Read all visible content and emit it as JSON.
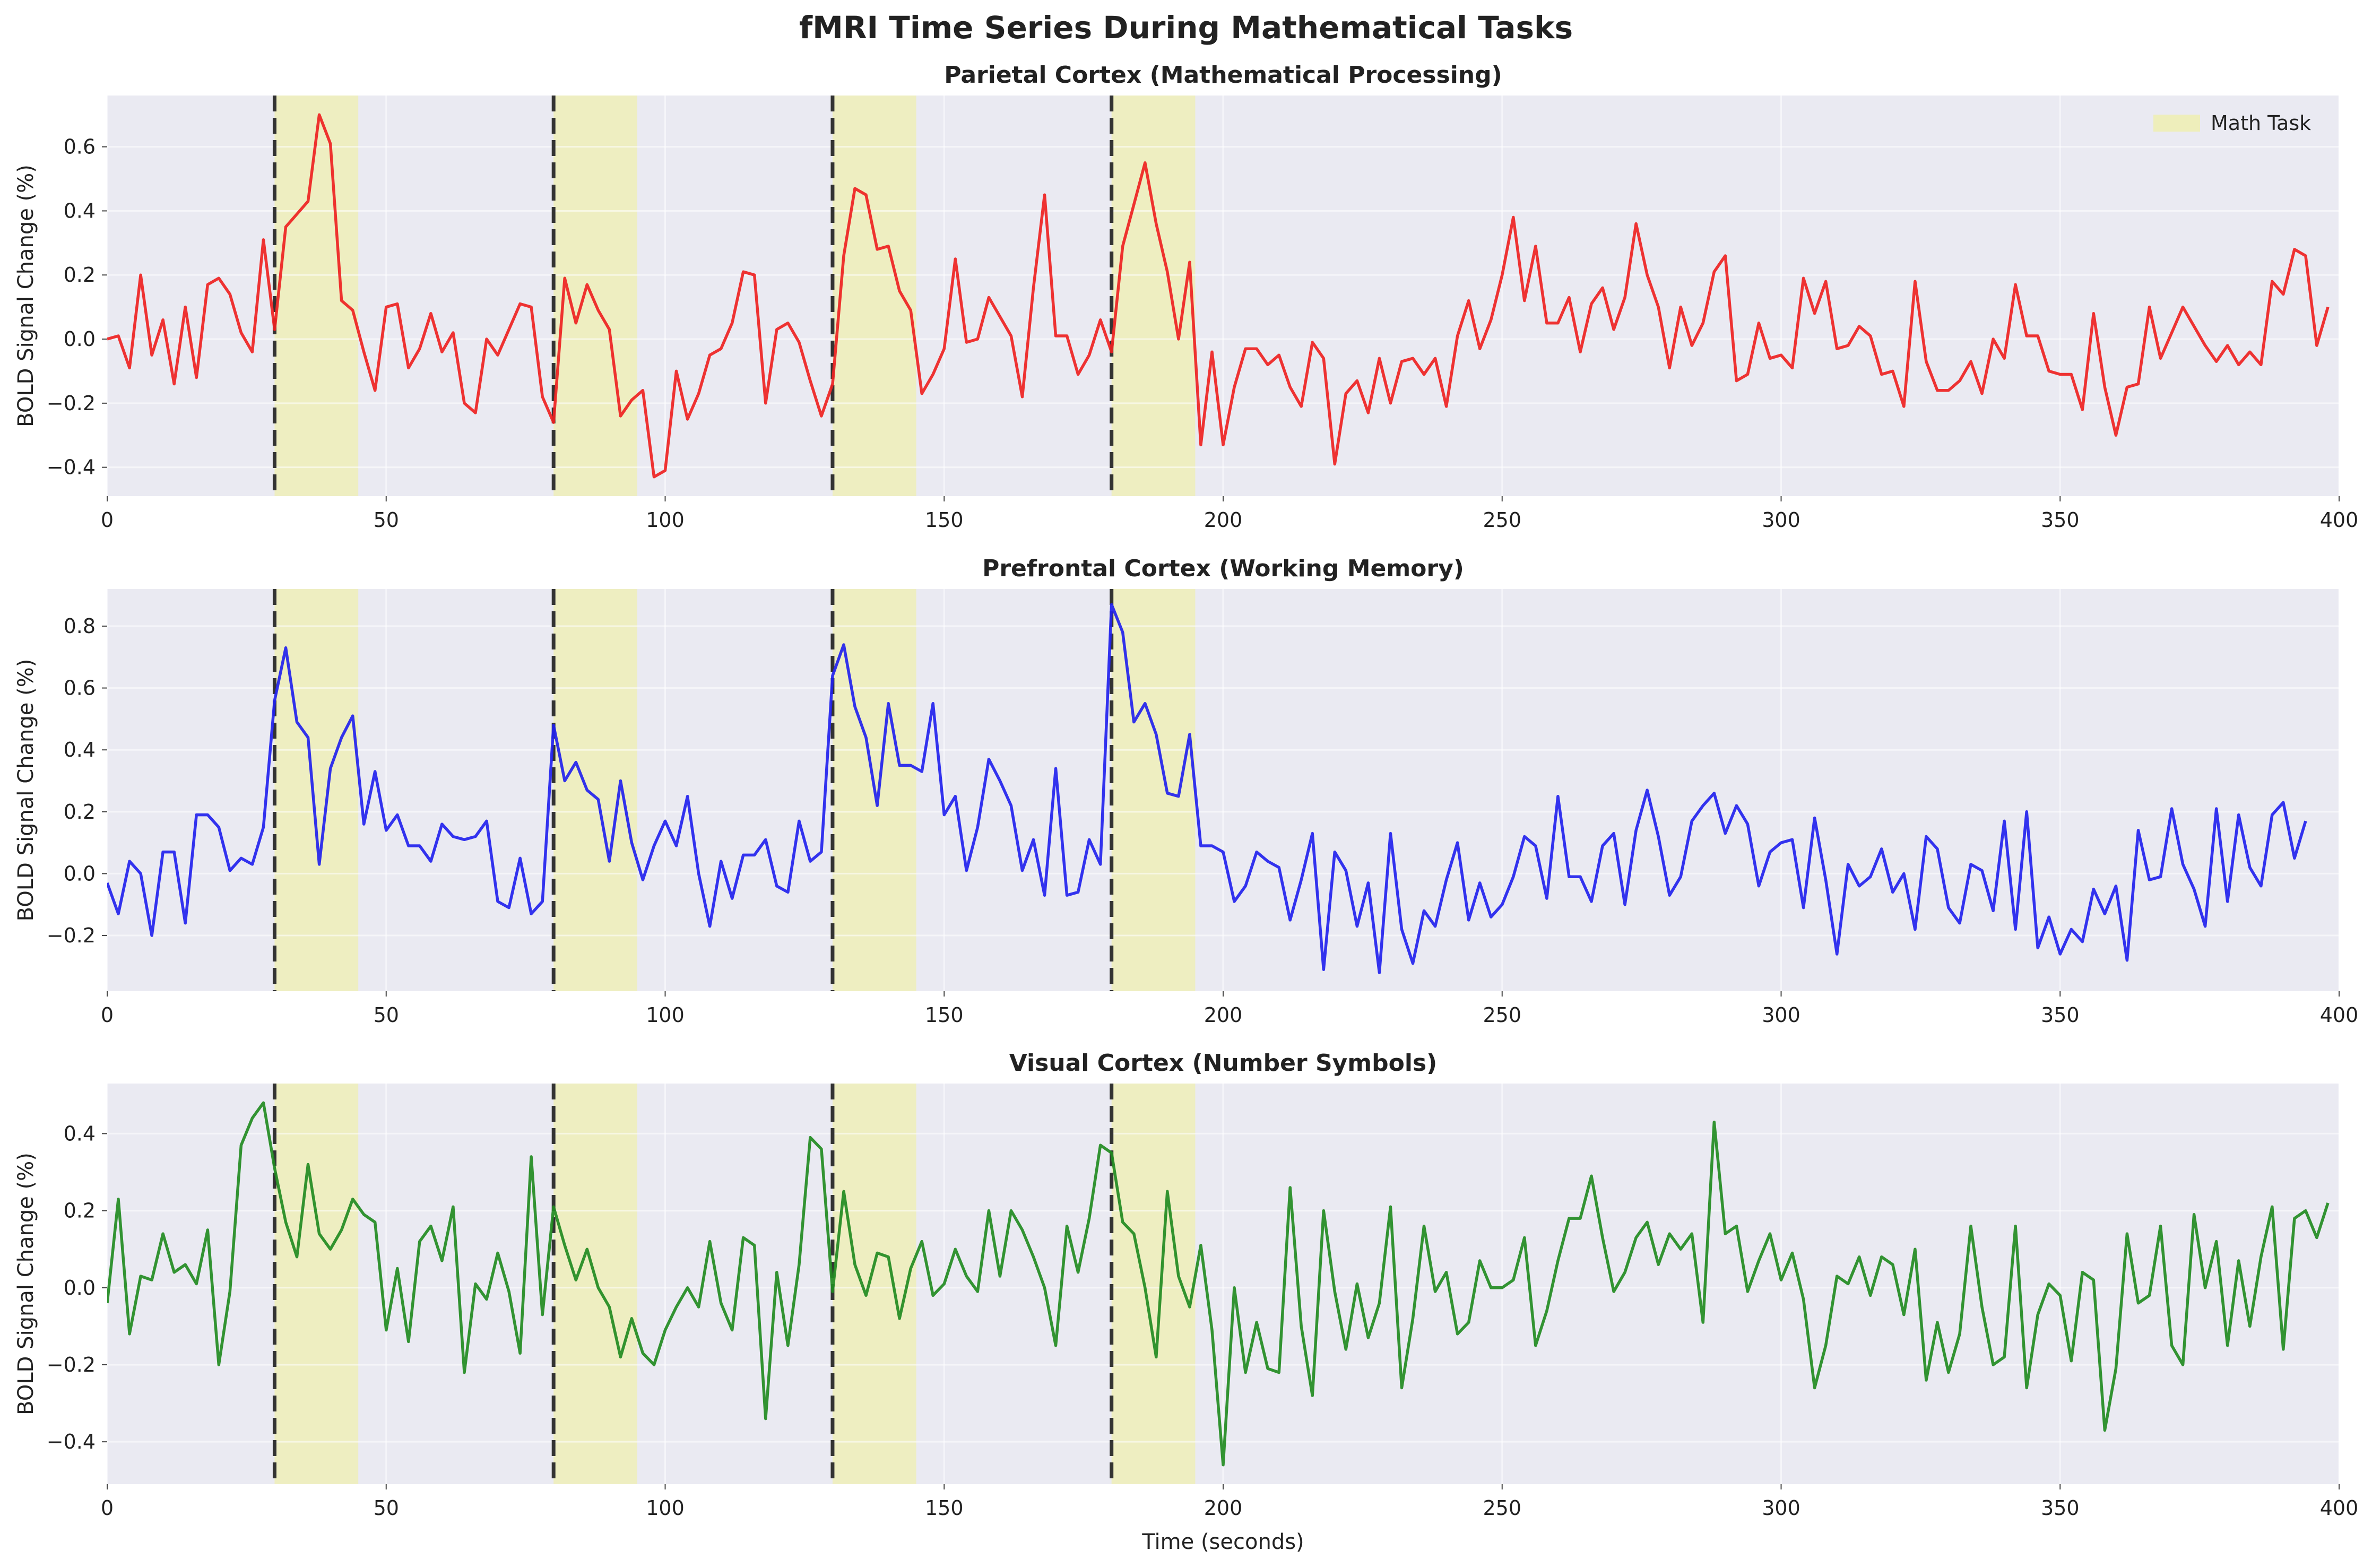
{
  "figure": {
    "suptitle": "fMRI Time Series During Mathematical Tasks",
    "background": "#ffffff",
    "axes_face": "#eaeaf2",
    "grid_color": "#ffffff",
    "task_color": "#eeeebb",
    "onset_line_color": "#333333"
  },
  "chart_data": [
    {
      "type": "line",
      "title": "Parietal Cortex (Mathematical Processing)",
      "xlabel": "",
      "ylabel": "BOLD Signal Change (%)",
      "xlim": [
        0,
        400
      ],
      "ylim": [
        -0.49,
        0.76
      ],
      "xticks": [
        0,
        50,
        100,
        150,
        200,
        250,
        300,
        350,
        400
      ],
      "yticks": [
        -0.4,
        -0.2,
        0.0,
        0.2,
        0.4,
        0.6
      ],
      "ytick_labels": [
        "−0.4",
        "−0.2",
        "0.0",
        "0.2",
        "0.4",
        "0.6"
      ],
      "grid": true,
      "legend": {
        "position": "top-right",
        "entries": [
          {
            "label": "Math Task",
            "color": "#eeeebb"
          }
        ]
      },
      "task_blocks": [
        [
          30,
          45
        ],
        [
          80,
          95
        ],
        [
          130,
          145
        ],
        [
          180,
          195
        ]
      ],
      "onset_lines": [
        30,
        80,
        130,
        180
      ],
      "series": [
        {
          "color": "#ee2222",
          "x_start": 0,
          "x_step": 2,
          "values": [
            0.0,
            0.01,
            -0.09,
            0.2,
            -0.05,
            0.06,
            -0.14,
            0.1,
            -0.12,
            0.17,
            0.19,
            0.14,
            0.02,
            -0.04,
            0.31,
            0.03,
            0.35,
            0.39,
            0.43,
            0.7,
            0.61,
            0.12,
            0.09,
            -0.04,
            -0.16,
            0.1,
            0.11,
            -0.09,
            -0.03,
            0.08,
            -0.04,
            0.02,
            -0.2,
            -0.23,
            0.0,
            -0.05,
            0.03,
            0.11,
            0.1,
            -0.18,
            -0.26,
            0.19,
            0.05,
            0.17,
            0.09,
            0.03,
            -0.24,
            -0.19,
            -0.16,
            -0.43,
            -0.41,
            -0.1,
            -0.25,
            -0.17,
            -0.05,
            -0.03,
            0.05,
            0.21,
            0.2,
            -0.2,
            0.03,
            0.05,
            -0.01,
            -0.13,
            -0.24,
            -0.14,
            0.26,
            0.47,
            0.45,
            0.28,
            0.29,
            0.15,
            0.09,
            -0.17,
            -0.11,
            -0.03,
            0.25,
            -0.01,
            0.0,
            0.13,
            0.07,
            0.01,
            -0.18,
            0.16,
            0.45,
            0.01,
            0.01,
            -0.11,
            -0.05,
            0.06,
            -0.04,
            0.29,
            0.42,
            0.55,
            0.36,
            0.21,
            0.0,
            0.24,
            -0.33,
            -0.04,
            -0.33,
            -0.15,
            -0.03,
            -0.03,
            -0.08,
            -0.05,
            -0.15,
            -0.21,
            -0.01,
            -0.06,
            -0.39,
            -0.17,
            -0.13,
            -0.23,
            -0.06,
            -0.2,
            -0.07,
            -0.06,
            -0.11,
            -0.06,
            -0.21,
            0.01,
            0.12,
            -0.03,
            0.06,
            0.2,
            0.38,
            0.12,
            0.29,
            0.05,
            0.05,
            0.13,
            -0.04,
            0.11,
            0.16,
            0.03,
            0.13,
            0.36,
            0.2,
            0.1,
            -0.09,
            0.1,
            -0.02,
            0.05,
            0.21,
            0.26,
            -0.13,
            -0.11,
            0.05,
            -0.06,
            -0.05,
            -0.09,
            0.19,
            0.08,
            0.18,
            -0.03,
            -0.02,
            0.04,
            0.01,
            -0.11,
            -0.1,
            -0.21,
            0.18,
            -0.07,
            -0.16,
            -0.16,
            -0.13,
            -0.07,
            -0.17,
            0.0,
            -0.06,
            0.17,
            0.01,
            0.01,
            -0.1,
            -0.11,
            -0.11,
            -0.22,
            0.08,
            -0.15,
            -0.3,
            -0.15,
            -0.14,
            0.1,
            -0.06,
            0.02,
            0.1,
            0.04,
            -0.02,
            -0.07,
            -0.02,
            -0.08,
            -0.04,
            -0.08,
            0.18,
            0.14,
            0.28,
            0.26,
            -0.02,
            0.1
          ]
        }
      ]
    },
    {
      "type": "line",
      "title": "Prefrontal Cortex (Working Memory)",
      "xlabel": "",
      "ylabel": "BOLD Signal Change (%)",
      "xlim": [
        0,
        400
      ],
      "ylim": [
        -0.38,
        0.92
      ],
      "xticks": [
        0,
        50,
        100,
        150,
        200,
        250,
        300,
        350,
        400
      ],
      "yticks": [
        -0.2,
        0.0,
        0.2,
        0.4,
        0.6,
        0.8
      ],
      "ytick_labels": [
        "−0.2",
        "0.0",
        "0.2",
        "0.4",
        "0.6",
        "0.8"
      ],
      "grid": true,
      "task_blocks": [
        [
          30,
          45
        ],
        [
          80,
          95
        ],
        [
          130,
          145
        ],
        [
          180,
          195
        ]
      ],
      "onset_lines": [
        30,
        80,
        130,
        180
      ],
      "series": [
        {
          "color": "#2222ee",
          "x_start": 0,
          "x_step": 2,
          "values": [
            -0.03,
            -0.13,
            0.04,
            0.0,
            -0.2,
            0.07,
            0.07,
            -0.16,
            0.19,
            0.19,
            0.15,
            0.01,
            0.05,
            0.03,
            0.15,
            0.56,
            0.73,
            0.49,
            0.44,
            0.03,
            0.34,
            0.44,
            0.51,
            0.16,
            0.33,
            0.14,
            0.19,
            0.09,
            0.09,
            0.04,
            0.16,
            0.12,
            0.11,
            0.12,
            0.17,
            -0.09,
            -0.11,
            0.05,
            -0.13,
            -0.09,
            0.48,
            0.3,
            0.36,
            0.27,
            0.24,
            0.04,
            0.3,
            0.1,
            -0.02,
            0.09,
            0.17,
            0.09,
            0.25,
            0.0,
            -0.17,
            0.04,
            -0.08,
            0.06,
            0.06,
            0.11,
            -0.04,
            -0.06,
            0.17,
            0.04,
            0.07,
            0.64,
            0.74,
            0.54,
            0.44,
            0.22,
            0.55,
            0.35,
            0.35,
            0.33,
            0.55,
            0.19,
            0.25,
            0.01,
            0.15,
            0.37,
            0.3,
            0.22,
            0.01,
            0.11,
            -0.07,
            0.34,
            -0.07,
            -0.06,
            0.11,
            0.03,
            0.87,
            0.78,
            0.49,
            0.55,
            0.45,
            0.26,
            0.25,
            0.45,
            0.09,
            0.09,
            0.07,
            -0.09,
            -0.04,
            0.07,
            0.04,
            0.02,
            -0.15,
            -0.02,
            0.13,
            -0.31,
            0.07,
            0.01,
            -0.17,
            -0.03,
            -0.32,
            0.13,
            -0.18,
            -0.29,
            -0.12,
            -0.17,
            -0.02,
            0.1,
            -0.15,
            -0.03,
            -0.14,
            -0.1,
            -0.01,
            0.12,
            0.09,
            -0.08,
            0.25,
            -0.01,
            -0.01,
            -0.09,
            0.09,
            0.13,
            -0.1,
            0.14,
            0.27,
            0.12,
            -0.07,
            -0.01,
            0.17,
            0.22,
            0.26,
            0.13,
            0.22,
            0.16,
            -0.04,
            0.07,
            0.1,
            0.11,
            -0.11,
            0.18,
            -0.02,
            -0.26,
            0.03,
            -0.04,
            -0.01,
            0.08,
            -0.06,
            0.0,
            -0.18,
            0.12,
            0.08,
            -0.11,
            -0.16,
            0.03,
            0.01,
            -0.12,
            0.17,
            -0.18,
            0.2,
            -0.24,
            -0.14,
            -0.26,
            -0.18,
            -0.22,
            -0.05,
            -0.13,
            -0.04,
            -0.28,
            0.14,
            -0.02,
            -0.01,
            0.21,
            0.03,
            -0.05,
            -0.17,
            0.21,
            -0.09,
            0.19,
            0.02,
            -0.04,
            0.19,
            0.23,
            0.05,
            0.17
          ]
        }
      ]
    },
    {
      "type": "line",
      "title": "Visual Cortex (Number Symbols)",
      "xlabel": "Time (seconds)",
      "ylabel": "BOLD Signal Change (%)",
      "xlim": [
        0,
        400
      ],
      "ylim": [
        -0.51,
        0.53
      ],
      "xticks": [
        0,
        50,
        100,
        150,
        200,
        250,
        300,
        350,
        400
      ],
      "yticks": [
        -0.4,
        -0.2,
        0.0,
        0.2,
        0.4
      ],
      "ytick_labels": [
        "−0.4",
        "−0.2",
        "0.0",
        "0.2",
        "0.4"
      ],
      "grid": true,
      "task_blocks": [
        [
          30,
          45
        ],
        [
          80,
          95
        ],
        [
          130,
          145
        ],
        [
          180,
          195
        ]
      ],
      "onset_lines": [
        30,
        80,
        130,
        180
      ],
      "series": [
        {
          "color": "#228b22",
          "x_start": 0,
          "x_step": 2,
          "values": [
            -0.04,
            0.23,
            -0.12,
            0.03,
            0.02,
            0.14,
            0.04,
            0.06,
            0.01,
            0.15,
            -0.2,
            -0.01,
            0.37,
            0.44,
            0.48,
            0.31,
            0.17,
            0.08,
            0.32,
            0.14,
            0.1,
            0.15,
            0.23,
            0.19,
            0.17,
            -0.11,
            0.05,
            -0.14,
            0.12,
            0.16,
            0.07,
            0.21,
            -0.22,
            0.01,
            -0.03,
            0.09,
            -0.01,
            -0.17,
            0.34,
            -0.07,
            0.21,
            0.11,
            0.02,
            0.1,
            0.0,
            -0.05,
            -0.18,
            -0.08,
            -0.17,
            -0.2,
            -0.11,
            -0.05,
            0.0,
            -0.05,
            0.12,
            -0.04,
            -0.11,
            0.13,
            0.11,
            -0.34,
            0.04,
            -0.15,
            0.06,
            0.39,
            0.36,
            -0.01,
            0.25,
            0.06,
            -0.02,
            0.09,
            0.08,
            -0.08,
            0.05,
            0.12,
            -0.02,
            0.01,
            0.1,
            0.03,
            -0.01,
            0.2,
            0.03,
            0.2,
            0.15,
            0.08,
            0.0,
            -0.15,
            0.16,
            0.04,
            0.18,
            0.37,
            0.35,
            0.17,
            0.14,
            0.0,
            -0.18,
            0.25,
            0.03,
            -0.05,
            0.11,
            -0.11,
            -0.46,
            0.0,
            -0.22,
            -0.09,
            -0.21,
            -0.22,
            0.26,
            -0.1,
            -0.28,
            0.2,
            -0.01,
            -0.16,
            0.01,
            -0.13,
            -0.04,
            0.21,
            -0.26,
            -0.08,
            0.16,
            -0.01,
            0.04,
            -0.12,
            -0.09,
            0.07,
            0.0,
            0.0,
            0.02,
            0.13,
            -0.15,
            -0.06,
            0.07,
            0.18,
            0.18,
            0.29,
            0.13,
            -0.01,
            0.04,
            0.13,
            0.17,
            0.06,
            0.14,
            0.1,
            0.14,
            -0.09,
            0.43,
            0.14,
            0.16,
            -0.01,
            0.07,
            0.14,
            0.02,
            0.09,
            -0.03,
            -0.26,
            -0.15,
            0.03,
            0.01,
            0.08,
            -0.02,
            0.08,
            0.06,
            -0.07,
            0.1,
            -0.24,
            -0.09,
            -0.22,
            -0.12,
            0.16,
            -0.05,
            -0.2,
            -0.18,
            0.16,
            -0.26,
            -0.07,
            0.01,
            -0.02,
            -0.19,
            0.04,
            0.02,
            -0.37,
            -0.21,
            0.14,
            -0.04,
            -0.02,
            0.16,
            -0.15,
            -0.2,
            0.19,
            0.0,
            0.12,
            -0.15,
            0.07,
            -0.1,
            0.08,
            0.21,
            -0.16,
            0.18,
            0.2,
            0.13,
            0.22
          ]
        }
      ]
    }
  ]
}
